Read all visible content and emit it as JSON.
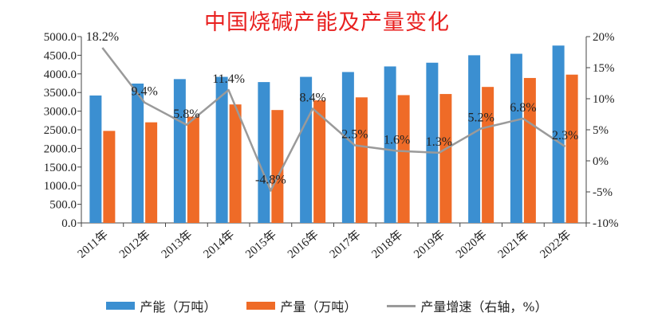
{
  "chart_data": {
    "type": "bar",
    "title": "中国烧碱产能及产量变化",
    "categories": [
      "2011年",
      "2012年",
      "2013年",
      "2014年",
      "2015年",
      "2016年",
      "2017年",
      "2018年",
      "2019年",
      "2020年",
      "2021年",
      "2022年"
    ],
    "series": [
      {
        "name": "产能（万吨）",
        "type": "bar",
        "axis": "left",
        "color": "#3b8fd1",
        "values": [
          3420,
          3740,
          3860,
          3920,
          3780,
          3920,
          4050,
          4200,
          4300,
          4500,
          4540,
          4760
        ]
      },
      {
        "name": "产量（万吨）",
        "type": "bar",
        "axis": "left",
        "color": "#ef6b27",
        "values": [
          2470,
          2700,
          2850,
          3180,
          3030,
          3290,
          3370,
          3430,
          3460,
          3650,
          3890,
          3980
        ]
      },
      {
        "name": "产量增速（右轴，%）",
        "type": "line",
        "axis": "right",
        "color": "#9a9a9a",
        "values": [
          18.2,
          9.4,
          5.8,
          11.4,
          -4.8,
          8.4,
          2.5,
          1.6,
          1.3,
          5.2,
          6.8,
          2.3
        ],
        "labels": [
          "18.2%",
          "9.4%",
          "5.8%",
          "11.4%",
          "-4.8%",
          "8.4%",
          "2.5%",
          "1.6%",
          "1.3%",
          "5.2%",
          "6.8%",
          "2.3%"
        ]
      }
    ],
    "ylim_left": [
      0,
      5000
    ],
    "yticks_left": [
      "0.0",
      "500.0",
      "1000.0",
      "1500.0",
      "2000.0",
      "2500.0",
      "3000.0",
      "3500.0",
      "4000.0",
      "4500.0",
      "5000.0"
    ],
    "ylim_right": [
      -10,
      20
    ],
    "yticks_right": [
      "-10%",
      "-5%",
      "0%",
      "5%",
      "10%",
      "15%",
      "20%"
    ],
    "grid": false,
    "legend_position": "bottom"
  }
}
